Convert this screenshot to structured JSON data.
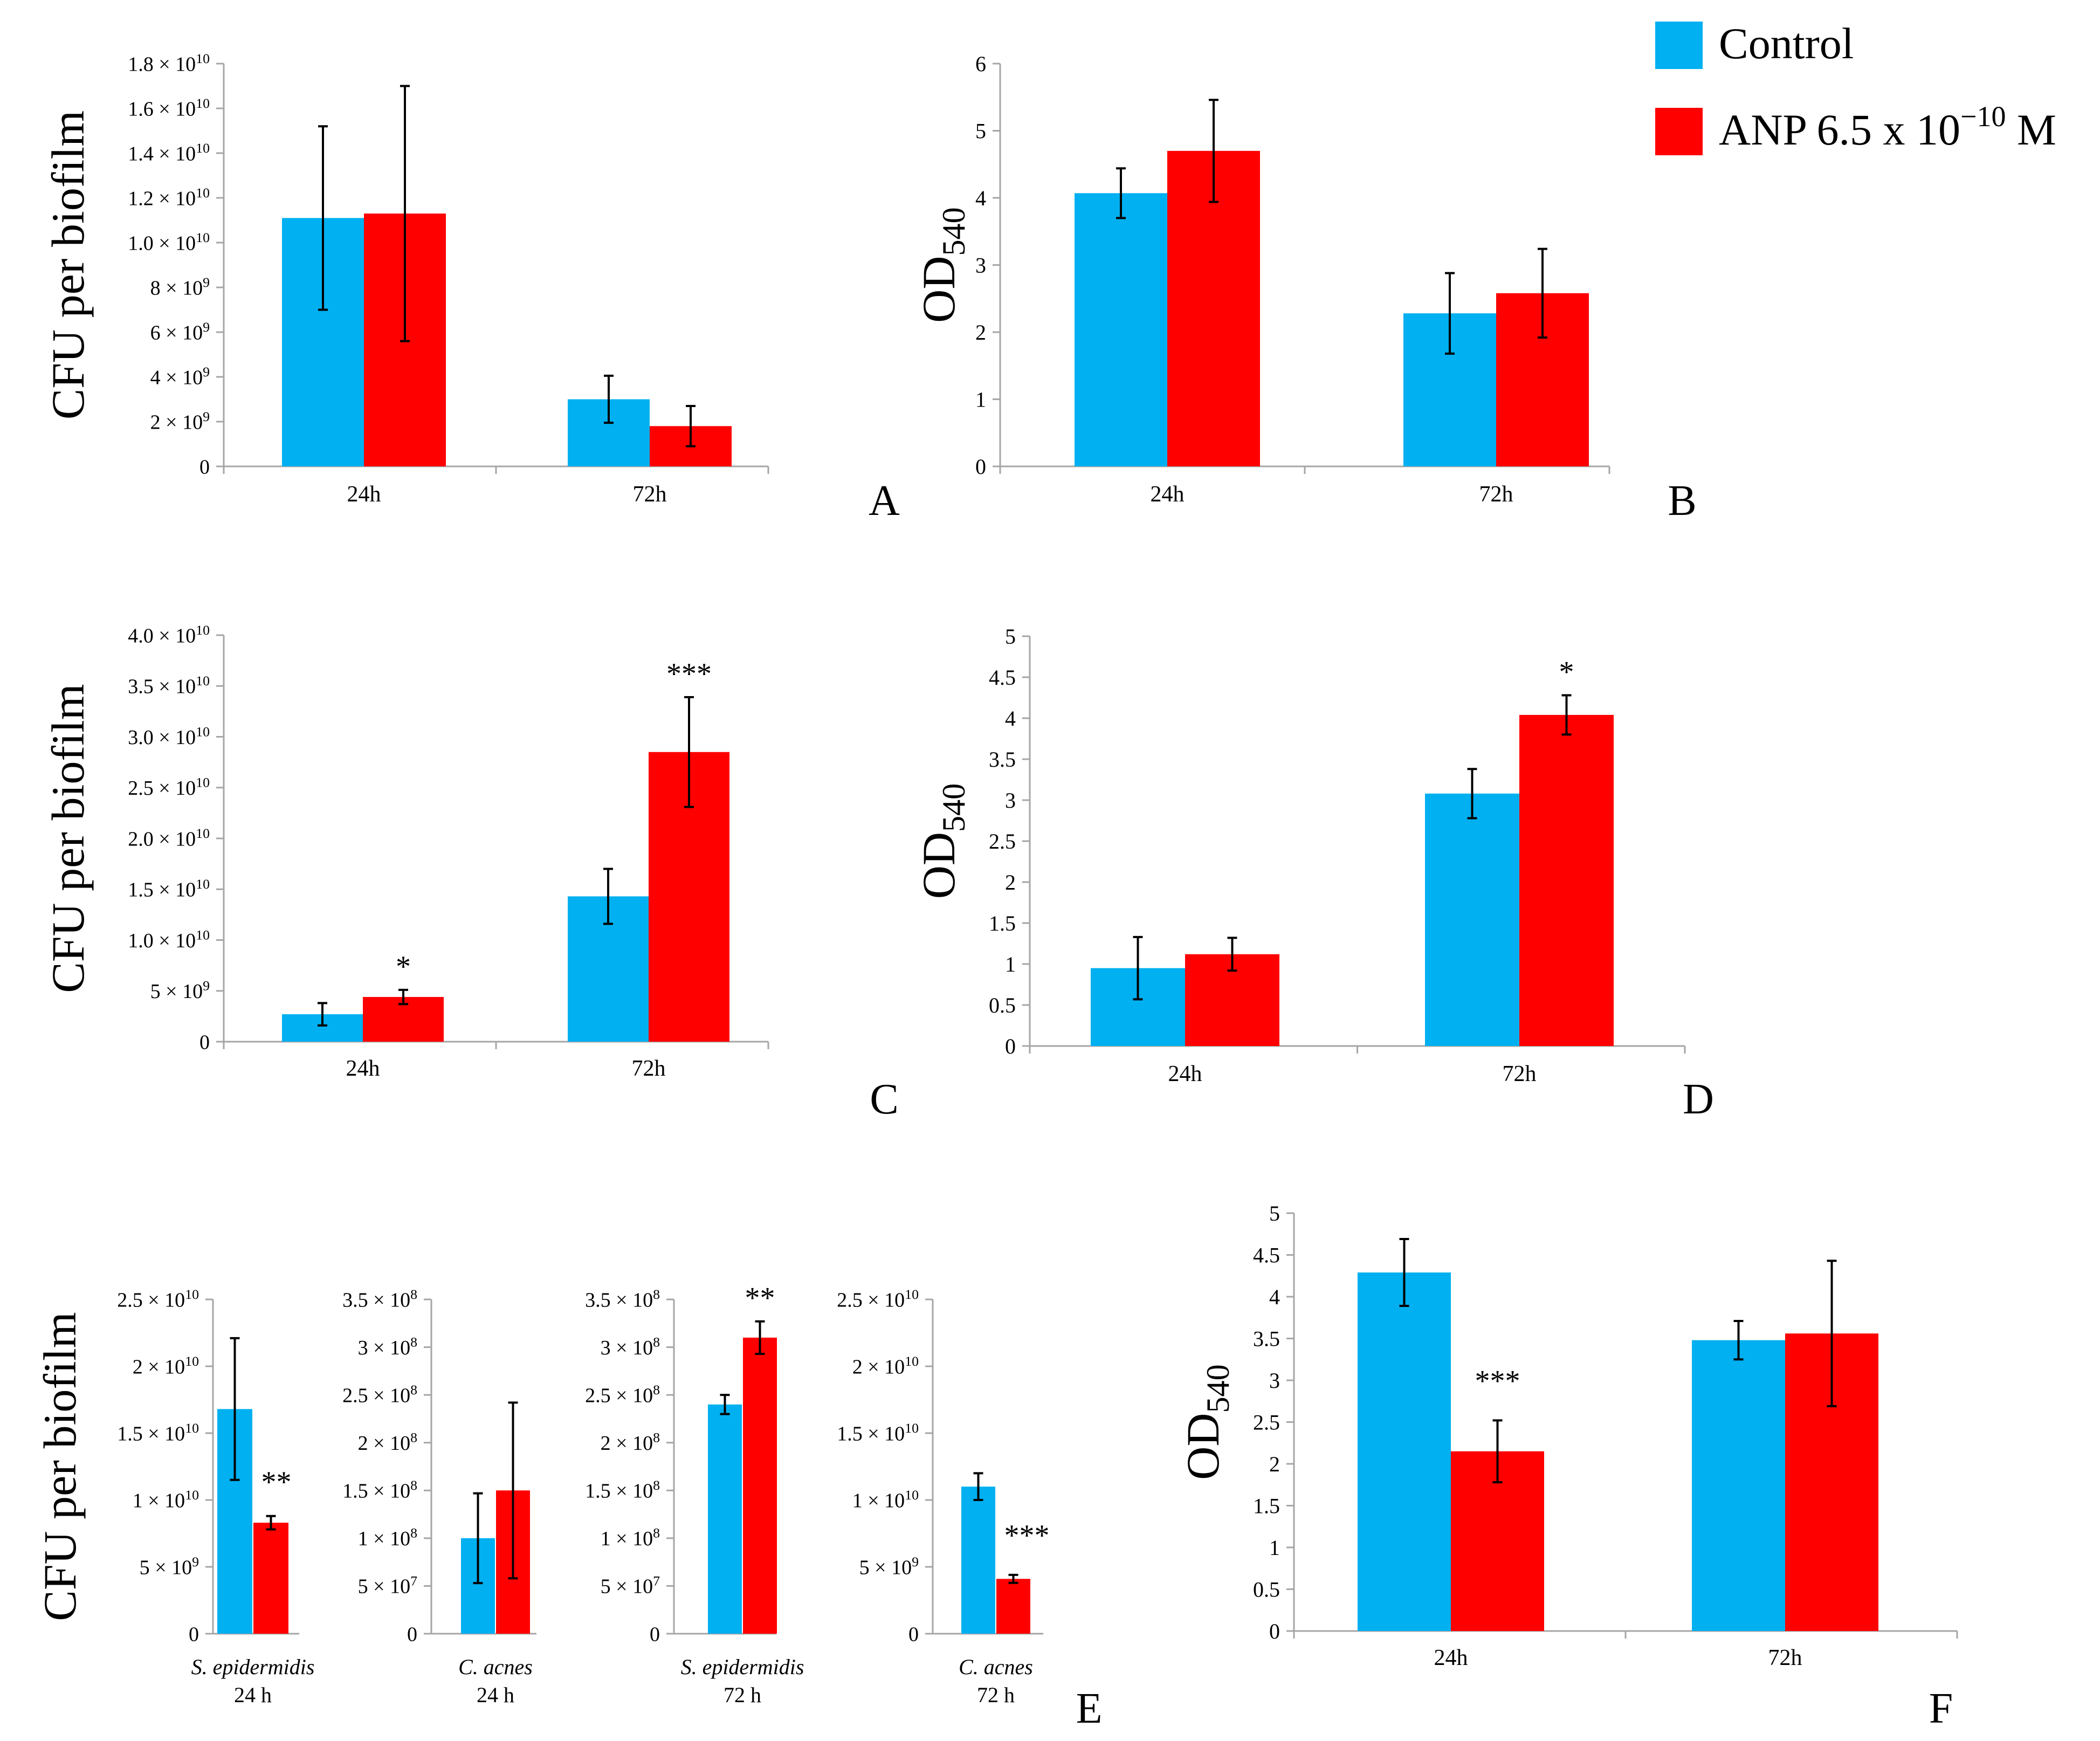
{
  "legend": {
    "items": [
      {
        "label": "Control",
        "color": "#00B0F0"
      },
      {
        "label": "ANP 6.5 x 10",
        "sup": "−10",
        "suffix": " M",
        "color": "#FF0000"
      }
    ]
  },
  "colors": {
    "control": "#00B0F0",
    "anp": "#FF0000",
    "axis": "#A6A6A6",
    "error": "#000000"
  },
  "chart_data": [
    {
      "panel": "A",
      "type": "bar",
      "ylabel": "CFU per biofilm",
      "categories": [
        "24h",
        "72h"
      ],
      "ylim": [
        0,
        18000000000
      ],
      "yticks": [
        0,
        2000000000,
        4000000000,
        6000000000,
        8000000000,
        10000000000,
        12000000000,
        14000000000,
        16000000000,
        18000000000
      ],
      "ytick_labels": [
        {
          "m": "0"
        },
        {
          "m": "2 × 10",
          "e": "9"
        },
        {
          "m": "4 × 10",
          "e": "9"
        },
        {
          "m": "6 × 10",
          "e": "9"
        },
        {
          "m": "8 × 10",
          "e": "9"
        },
        {
          "m": "1.0 × 10",
          "e": "10"
        },
        {
          "m": "1.2 × 10",
          "e": "10"
        },
        {
          "m": "1.4 × 10",
          "e": "10"
        },
        {
          "m": "1.6 × 10",
          "e": "10"
        },
        {
          "m": "1.8 × 10",
          "e": "10"
        }
      ],
      "series": [
        {
          "name": "Control",
          "values": [
            11100000000,
            3000000000
          ],
          "errors": [
            4100000000,
            1050000000
          ],
          "sig": [
            "",
            ""
          ]
        },
        {
          "name": "ANP 6.5 x 10^-10 M",
          "values": [
            11300000000,
            1800000000
          ],
          "errors": [
            5700000000,
            900000000
          ],
          "sig": [
            "",
            ""
          ]
        }
      ]
    },
    {
      "panel": "B",
      "type": "bar",
      "ylabel": "OD",
      "ylabel_sub": "540",
      "categories": [
        "24h",
        "72h"
      ],
      "ylim": [
        0,
        6
      ],
      "yticks": [
        0,
        1,
        2,
        3,
        4,
        5,
        6
      ],
      "ytick_labels": [
        {
          "m": "0"
        },
        {
          "m": "1"
        },
        {
          "m": "2"
        },
        {
          "m": "3"
        },
        {
          "m": "4"
        },
        {
          "m": "5"
        },
        {
          "m": "6"
        }
      ],
      "series": [
        {
          "name": "Control",
          "values": [
            4.07,
            2.28
          ],
          "errors": [
            0.37,
            0.6
          ],
          "sig": [
            "",
            ""
          ]
        },
        {
          "name": "ANP 6.5 x 10^-10 M",
          "values": [
            4.7,
            2.58
          ],
          "errors": [
            0.76,
            0.66
          ],
          "sig": [
            "",
            ""
          ]
        }
      ]
    },
    {
      "panel": "C",
      "type": "bar",
      "ylabel": "CFU per biofilm",
      "categories": [
        "24h",
        "72h"
      ],
      "ylim": [
        0,
        40000000000
      ],
      "yticks": [
        0,
        5000000000,
        10000000000,
        15000000000,
        20000000000,
        25000000000,
        30000000000,
        35000000000,
        40000000000
      ],
      "ytick_labels": [
        {
          "m": "0"
        },
        {
          "m": "5 × 10",
          "e": "9"
        },
        {
          "m": "1.0 × 10",
          "e": "10"
        },
        {
          "m": "1.5 × 10",
          "e": "10"
        },
        {
          "m": "2.0 × 10",
          "e": "10"
        },
        {
          "m": "2.5 × 10",
          "e": "10"
        },
        {
          "m": "3.0 × 10",
          "e": "10"
        },
        {
          "m": "3.5 × 10",
          "e": "10"
        },
        {
          "m": "4.0 × 10",
          "e": "10"
        }
      ],
      "series": [
        {
          "name": "Control",
          "values": [
            2700000000,
            14300000000
          ],
          "errors": [
            1100000000,
            2700000000
          ],
          "sig": [
            "",
            ""
          ]
        },
        {
          "name": "ANP 6.5 x 10^-10 M",
          "values": [
            4400000000,
            28500000000
          ],
          "errors": [
            700000000,
            5400000000
          ],
          "sig": [
            "*",
            "***"
          ]
        }
      ]
    },
    {
      "panel": "D",
      "type": "bar",
      "ylabel": "OD",
      "ylabel_sub": "540",
      "categories": [
        "24h",
        "72h"
      ],
      "ylim": [
        0,
        5
      ],
      "yticks": [
        0,
        0.5,
        1,
        1.5,
        2,
        2.5,
        3,
        3.5,
        4,
        4.5,
        5
      ],
      "ytick_labels": [
        {
          "m": "0"
        },
        {
          "m": "0.5"
        },
        {
          "m": "1"
        },
        {
          "m": "1.5"
        },
        {
          "m": "2"
        },
        {
          "m": "2.5"
        },
        {
          "m": "3"
        },
        {
          "m": "3.5"
        },
        {
          "m": "4"
        },
        {
          "m": "4.5"
        },
        {
          "m": "5"
        }
      ],
      "series": [
        {
          "name": "Control",
          "values": [
            0.95,
            3.08
          ],
          "errors": [
            0.38,
            0.3
          ],
          "sig": [
            "",
            ""
          ]
        },
        {
          "name": "ANP 6.5 x 10^-10 M",
          "values": [
            1.12,
            4.04
          ],
          "errors": [
            0.2,
            0.24
          ],
          "sig": [
            "",
            "*"
          ]
        }
      ]
    },
    {
      "panel": "E1",
      "type": "bar",
      "ylabel": "CFU per biofilm",
      "categories": [
        "S. epidermidis"
      ],
      "category_sub": "24 h",
      "ylim": [
        0,
        25000000000
      ],
      "yticks": [
        0,
        5000000000,
        10000000000,
        15000000000,
        20000000000,
        25000000000
      ],
      "ytick_labels": [
        {
          "m": "0"
        },
        {
          "m": "5 × 10",
          "e": "9"
        },
        {
          "m": "1 × 10",
          "e": "10"
        },
        {
          "m": "1.5 × 10",
          "e": "10"
        },
        {
          "m": "2 × 10",
          "e": "10"
        },
        {
          "m": "2.5 × 10",
          "e": "10"
        }
      ],
      "series": [
        {
          "name": "Control",
          "values": [
            16800000000
          ],
          "errors": [
            5300000000
          ],
          "sig": [
            ""
          ]
        },
        {
          "name": "ANP 6.5 x 10^-10 M",
          "values": [
            8300000000
          ],
          "errors": [
            500000000
          ],
          "sig": [
            "**"
          ]
        }
      ]
    },
    {
      "panel": "E2",
      "type": "bar",
      "categories": [
        "C. acnes"
      ],
      "category_sub": "24 h",
      "ylim": [
        0,
        350000000
      ],
      "yticks": [
        0,
        50000000,
        100000000,
        150000000,
        200000000,
        250000000,
        300000000,
        350000000
      ],
      "ytick_labels": [
        {
          "m": "0"
        },
        {
          "m": "5 × 10",
          "e": "7"
        },
        {
          "m": "1 × 10",
          "e": "8"
        },
        {
          "m": "1.5 × 10",
          "e": "8"
        },
        {
          "m": "2 × 10",
          "e": "8"
        },
        {
          "m": "2.5 × 10",
          "e": "8"
        },
        {
          "m": "3 × 10",
          "e": "8"
        },
        {
          "m": "3.5 × 10",
          "e": "8"
        }
      ],
      "series": [
        {
          "name": "Control",
          "values": [
            100000000
          ],
          "errors": [
            47000000
          ],
          "sig": [
            ""
          ]
        },
        {
          "name": "ANP 6.5 x 10^-10 M",
          "values": [
            150000000
          ],
          "errors": [
            92000000
          ],
          "sig": [
            ""
          ]
        }
      ]
    },
    {
      "panel": "E3",
      "type": "bar",
      "categories": [
        "S. epidermidis"
      ],
      "category_sub": "72 h",
      "ylim": [
        0,
        350000000
      ],
      "yticks": [
        0,
        50000000,
        100000000,
        150000000,
        200000000,
        250000000,
        300000000,
        350000000
      ],
      "ytick_labels": [
        {
          "m": "0"
        },
        {
          "m": "5 × 10",
          "e": "7"
        },
        {
          "m": "1 × 10",
          "e": "8"
        },
        {
          "m": "1.5 × 10",
          "e": "8"
        },
        {
          "m": "2 × 10",
          "e": "8"
        },
        {
          "m": "2.5 × 10",
          "e": "8"
        },
        {
          "m": "3 × 10",
          "e": "8"
        },
        {
          "m": "3.5 × 10",
          "e": "8"
        }
      ],
      "series": [
        {
          "name": "Control",
          "values": [
            240000000
          ],
          "errors": [
            10000000
          ],
          "sig": [
            ""
          ]
        },
        {
          "name": "ANP 6.5 x 10^-10 M",
          "values": [
            310000000
          ],
          "errors": [
            17000000
          ],
          "sig": [
            "**"
          ]
        }
      ]
    },
    {
      "panel": "E4",
      "type": "bar",
      "categories": [
        "C. acnes"
      ],
      "category_sub": "72 h",
      "ylim": [
        0,
        25000000000
      ],
      "yticks": [
        0,
        5000000000,
        10000000000,
        15000000000,
        20000000000,
        25000000000
      ],
      "ytick_labels": [
        {
          "m": "0"
        },
        {
          "m": "5 × 10",
          "e": "9"
        },
        {
          "m": "1 × 10",
          "e": "10"
        },
        {
          "m": "1.5 × 10",
          "e": "10"
        },
        {
          "m": "2 × 10",
          "e": "10"
        },
        {
          "m": "2.5 × 10",
          "e": "10"
        }
      ],
      "series": [
        {
          "name": "Control",
          "values": [
            11000000000
          ],
          "errors": [
            1000000000
          ],
          "sig": [
            ""
          ]
        },
        {
          "name": "ANP 6.5 x 10^-10 M",
          "values": [
            4100000000
          ],
          "errors": [
            300000000
          ],
          "sig": [
            "***"
          ]
        }
      ]
    },
    {
      "panel": "F",
      "type": "bar",
      "ylabel": "OD",
      "ylabel_sub": "540",
      "categories": [
        "24h",
        "72h"
      ],
      "ylim": [
        0,
        5
      ],
      "yticks": [
        0,
        0.5,
        1,
        1.5,
        2,
        2.5,
        3,
        3.5,
        4,
        4.5,
        5
      ],
      "ytick_labels": [
        {
          "m": "0"
        },
        {
          "m": "0.5"
        },
        {
          "m": "1"
        },
        {
          "m": "1.5"
        },
        {
          "m": "2"
        },
        {
          "m": "2.5"
        },
        {
          "m": "3"
        },
        {
          "m": "3.5"
        },
        {
          "m": "4"
        },
        {
          "m": "4.5"
        },
        {
          "m": "5"
        }
      ],
      "series": [
        {
          "name": "Control",
          "values": [
            4.29,
            3.48
          ],
          "errors": [
            0.4,
            0.23
          ],
          "sig": [
            "",
            ""
          ]
        },
        {
          "name": "ANP 6.5 x 10^-10 M",
          "values": [
            2.15,
            3.56
          ],
          "errors": [
            0.37,
            0.87
          ],
          "sig": [
            "***",
            ""
          ]
        }
      ]
    }
  ]
}
